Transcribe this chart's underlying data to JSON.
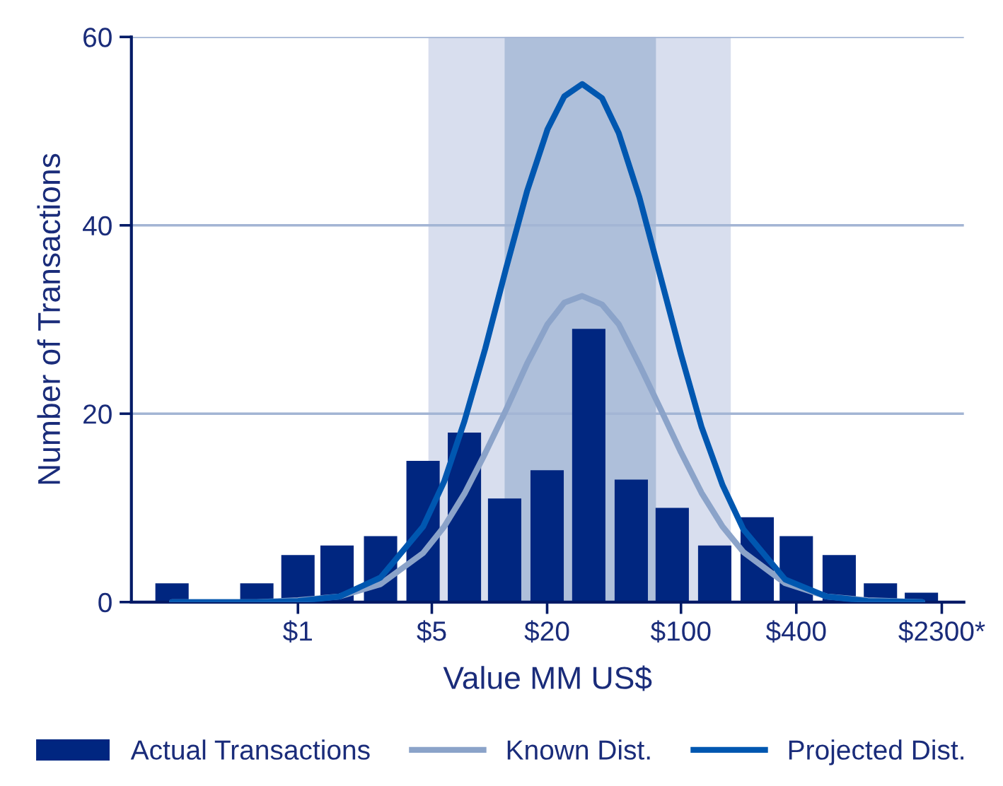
{
  "chart_data": {
    "type": "bar",
    "xlabel": "Value MM US$",
    "ylabel": "Number of Transactions",
    "log": "x",
    "xlim": [
      0.135,
      3000
    ],
    "ylim": [
      0,
      60
    ],
    "yticks": [
      0,
      20,
      40,
      60
    ],
    "xticks": [
      {
        "value": 1,
        "label": "$1"
      },
      {
        "value": 5,
        "label": "$5"
      },
      {
        "value": 20,
        "label": "$20"
      },
      {
        "value": 100,
        "label": "$100"
      },
      {
        "value": 400,
        "label": "$400"
      },
      {
        "value": 2300,
        "label": "$2300*"
      }
    ],
    "grid": "y",
    "legend": "bottom",
    "bands": [
      {
        "axis": "x",
        "from": 4.8,
        "to": 182,
        "color": "#d8deee"
      },
      {
        "axis": "x",
        "from": 12,
        "to": 74,
        "color": "#aebfda"
      }
    ],
    "series": [
      {
        "name": "Actual Transactions",
        "color": "#002680",
        "x": [
          0.22,
          0.37,
          0.61,
          1,
          1.6,
          2.7,
          4.5,
          7.4,
          12,
          20,
          33,
          55,
          90,
          150,
          250,
          400,
          670,
          1100,
          1800
        ],
        "values": [
          2,
          0,
          2,
          5,
          6,
          7,
          15,
          18,
          11,
          14,
          29,
          13,
          10,
          6,
          9,
          7,
          5,
          2,
          1
        ]
      },
      {
        "name": "Known Dist.",
        "type": "line",
        "color": "#8ba3c9",
        "x": [
          0.22,
          0.61,
          1,
          1.65,
          2.7,
          4.5,
          5.8,
          7.4,
          9.5,
          12.2,
          15.7,
          20.1,
          24.6,
          30.5,
          38.7,
          47.3,
          60.6,
          77.8,
          100,
          128,
          165,
          212,
          350,
          575,
          945,
          1820
        ],
        "values": [
          0,
          0,
          0.2,
          0.6,
          1.9,
          5.2,
          8,
          11.5,
          15.8,
          20.4,
          25.3,
          29.5,
          31.8,
          32.5,
          31.6,
          29.5,
          25.2,
          20.6,
          15.9,
          11.6,
          8,
          5.3,
          2,
          0.6,
          0.2,
          0
        ]
      },
      {
        "name": "Projected Dist.",
        "type": "line",
        "color": "#0057b0",
        "x": [
          0.22,
          0.61,
          1,
          1.65,
          2.7,
          4.5,
          5.8,
          7.4,
          9.5,
          12.2,
          15.7,
          20.1,
          24.6,
          30.5,
          38.7,
          47.3,
          60.6,
          77.8,
          100,
          128,
          165,
          212,
          350,
          575,
          945,
          1820
        ],
        "values": [
          0,
          0,
          0.1,
          0.6,
          2.6,
          8,
          12.8,
          19.2,
          26.9,
          35.4,
          43.6,
          50.2,
          53.7,
          55,
          53.5,
          49.8,
          43,
          34.7,
          26.3,
          18.6,
          12.4,
          7.7,
          2.4,
          0.6,
          0.1,
          0
        ]
      }
    ]
  }
}
